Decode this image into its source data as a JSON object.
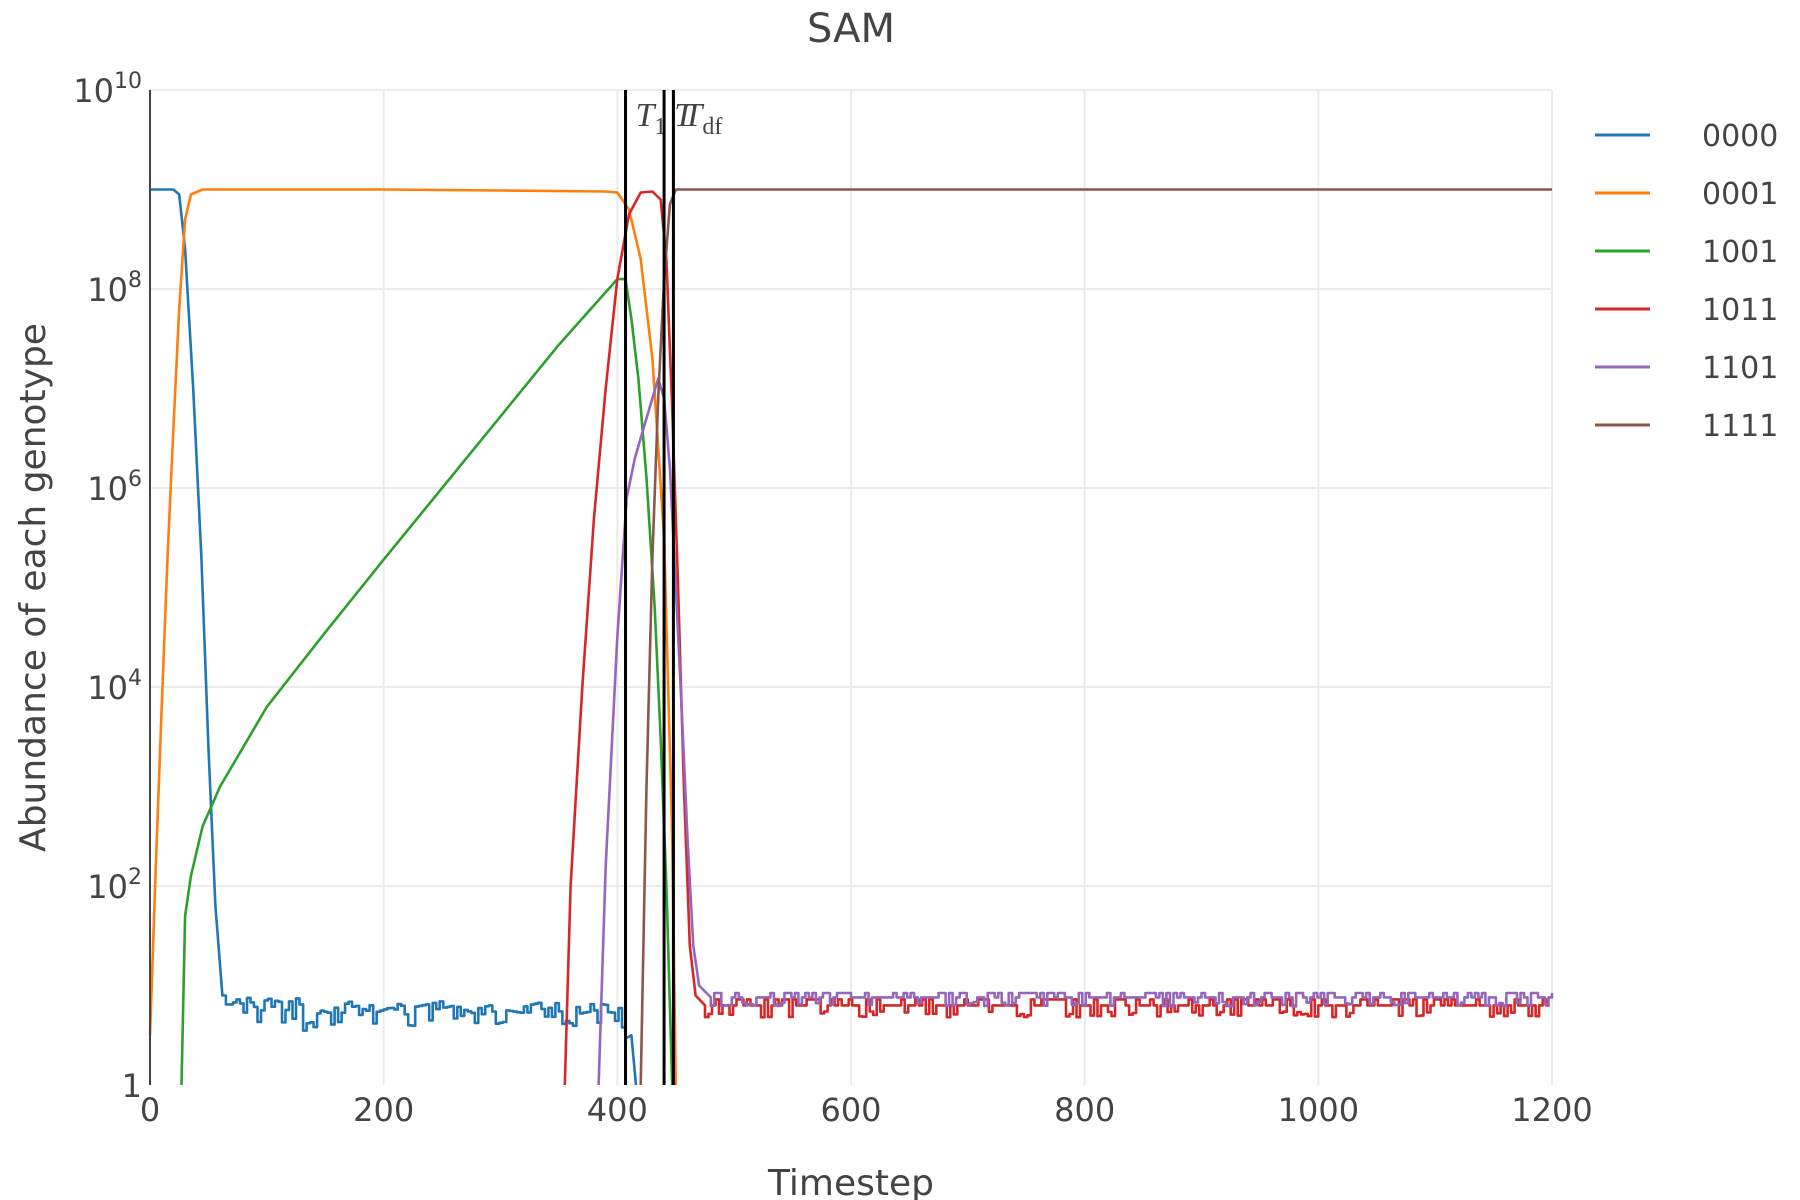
{
  "chart_data": {
    "type": "line",
    "title": "SAM",
    "xlabel": "Timestep",
    "ylabel": "Abundance of each genotype",
    "x_range": [
      0,
      1200
    ],
    "y_range_log10": [
      0,
      10
    ],
    "y_scale": "log",
    "grid": true,
    "legend_position": "top-right",
    "x_ticks": [
      "0",
      "200",
      "400",
      "600",
      "800",
      "1000",
      "1200"
    ],
    "y_ticks": [
      {
        "base": "1",
        "exp": ""
      },
      {
        "base": "10",
        "exp": "2"
      },
      {
        "base": "10",
        "exp": "4"
      },
      {
        "base": "10",
        "exp": "6"
      },
      {
        "base": "10",
        "exp": "8"
      },
      {
        "base": "10",
        "exp": "10"
      }
    ],
    "annotations": [
      {
        "x": 407,
        "label": "T",
        "sub": "1"
      },
      {
        "x": 440,
        "label": "T",
        "sub": ""
      },
      {
        "x": 448,
        "label": "T",
        "sub": "df"
      }
    ],
    "series": [
      {
        "name": "0000",
        "color": "#1f77b4",
        "points": [
          [
            0,
            9.0
          ],
          [
            20,
            9.0
          ],
          [
            25,
            8.95
          ],
          [
            30,
            8.4
          ],
          [
            37,
            7.0
          ],
          [
            44,
            5.3
          ],
          [
            50,
            3.4
          ],
          [
            56,
            1.8
          ],
          [
            62,
            0.9
          ],
          [
            65,
            0.9
          ],
          [
            70,
            0.75
          ],
          [
            80,
            0.85
          ],
          [
            90,
            0.7
          ],
          [
            100,
            0.8
          ],
          [
            115,
            0.75
          ],
          [
            125,
            0.8
          ],
          [
            135,
            0.6
          ],
          [
            145,
            0.75
          ],
          [
            160,
            0.7
          ],
          [
            175,
            0.8
          ],
          [
            190,
            0.72
          ],
          [
            205,
            0.78
          ],
          [
            220,
            0.7
          ],
          [
            240,
            0.75
          ],
          [
            260,
            0.8
          ],
          [
            280,
            0.7
          ],
          [
            300,
            0.76
          ],
          [
            320,
            0.72
          ],
          [
            340,
            0.78
          ],
          [
            360,
            0.7
          ],
          [
            380,
            0.75
          ],
          [
            400,
            0.72
          ],
          [
            407,
            0.6
          ],
          [
            412,
            0.5
          ],
          [
            416,
            0.0
          ]
        ],
        "noise": [
          62,
          407,
          0.07
        ]
      },
      {
        "name": "0001",
        "color": "#ff7f0e",
        "points": [
          [
            0,
            0.5
          ],
          [
            5,
            2.2
          ],
          [
            10,
            3.8
          ],
          [
            15,
            5.3
          ],
          [
            20,
            6.6
          ],
          [
            25,
            7.8
          ],
          [
            30,
            8.7
          ],
          [
            35,
            8.95
          ],
          [
            45,
            9.0
          ],
          [
            200,
            9.0
          ],
          [
            300,
            8.99
          ],
          [
            390,
            8.98
          ],
          [
            400,
            8.97
          ],
          [
            410,
            8.8
          ],
          [
            420,
            8.3
          ],
          [
            430,
            7.3
          ],
          [
            440,
            5.5
          ],
          [
            447,
            2.5
          ],
          [
            450,
            0.0
          ]
        ],
        "noise": null
      },
      {
        "name": "1001",
        "color": "#2ca02c",
        "points": [
          [
            27,
            0.0
          ],
          [
            30,
            1.7
          ],
          [
            35,
            2.1
          ],
          [
            45,
            2.6
          ],
          [
            60,
            3.0
          ],
          [
            80,
            3.4
          ],
          [
            100,
            3.8
          ],
          [
            150,
            4.55
          ],
          [
            200,
            5.28
          ],
          [
            250,
            6.0
          ],
          [
            300,
            6.72
          ],
          [
            350,
            7.44
          ],
          [
            400,
            8.1
          ],
          [
            407,
            8.1
          ],
          [
            412,
            7.7
          ],
          [
            418,
            7.1
          ],
          [
            425,
            6.1
          ],
          [
            432,
            4.8
          ],
          [
            437,
            3.5
          ],
          [
            442,
            2.0
          ],
          [
            447,
            0.0
          ]
        ],
        "noise": null
      },
      {
        "name": "1011",
        "color": "#d62728",
        "points": [
          [
            355,
            0.0
          ],
          [
            360,
            2.0
          ],
          [
            370,
            4.0
          ],
          [
            380,
            5.7
          ],
          [
            390,
            7.0
          ],
          [
            400,
            8.1
          ],
          [
            410,
            8.75
          ],
          [
            420,
            8.97
          ],
          [
            430,
            8.98
          ],
          [
            437,
            8.9
          ],
          [
            442,
            8.3
          ],
          [
            447,
            6.8
          ],
          [
            452,
            5.0
          ],
          [
            457,
            3.0
          ],
          [
            462,
            1.4
          ],
          [
            467,
            0.9
          ],
          [
            475,
            0.8
          ],
          [
            1200,
            0.8
          ]
        ],
        "noise": [
          475,
          1200,
          0.06
        ]
      },
      {
        "name": "1101",
        "color": "#9467bd",
        "points": [
          [
            384,
            0.0
          ],
          [
            390,
            2.2
          ],
          [
            400,
            4.5
          ],
          [
            408,
            5.9
          ],
          [
            415,
            6.3
          ],
          [
            425,
            6.7
          ],
          [
            435,
            7.1
          ],
          [
            440,
            6.9
          ],
          [
            445,
            6.2
          ],
          [
            450,
            5.0
          ],
          [
            455,
            3.8
          ],
          [
            460,
            2.5
          ],
          [
            465,
            1.4
          ],
          [
            470,
            1.0
          ],
          [
            480,
            0.88
          ],
          [
            1200,
            0.88
          ]
        ],
        "noise": [
          480,
          1200,
          0.045
        ]
      },
      {
        "name": "1111",
        "color": "#8c564b",
        "points": [
          [
            420,
            0.0
          ],
          [
            425,
            3.0
          ],
          [
            430,
            5.3
          ],
          [
            435,
            6.9
          ],
          [
            440,
            8.1
          ],
          [
            445,
            8.85
          ],
          [
            450,
            9.0
          ],
          [
            1200,
            9.0
          ]
        ],
        "noise": null
      }
    ]
  }
}
